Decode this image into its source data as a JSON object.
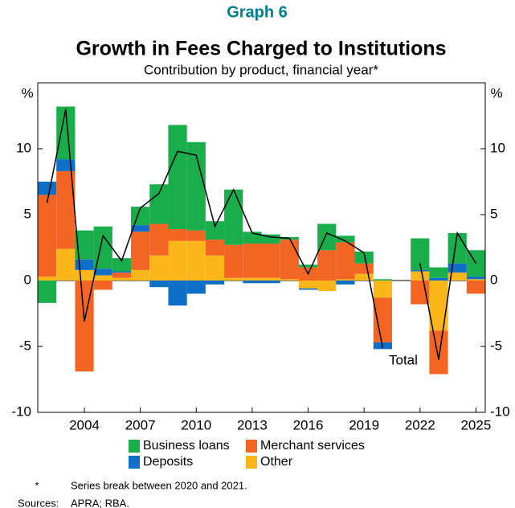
{
  "chart_data": {
    "type": "stacked_bar_line",
    "kicker": "Graph 6",
    "title": "Growth in Fees Charged to Institutions",
    "subtitle": "Contribution by product, financial year*",
    "y_unit": "%",
    "categories": [
      null,
      null,
      "2004",
      null,
      null,
      "2007",
      null,
      null,
      "2010",
      null,
      null,
      "2013",
      null,
      null,
      "2016",
      null,
      null,
      "2019",
      null,
      null,
      "2022",
      null,
      null,
      "2025"
    ],
    "series": [
      {
        "name": "Other",
        "color": "#fbb61a",
        "values": [
          0.3,
          2.4,
          0.8,
          0.4,
          0.2,
          0.8,
          1.9,
          3.0,
          3.0,
          1.9,
          0.2,
          0.2,
          0.2,
          0.1,
          -0.6,
          -0.8,
          0.1,
          0.5,
          -1.3,
          null,
          0.7,
          -3.8,
          0.6,
          0.1
        ]
      },
      {
        "name": "Merchant services",
        "color": "#f26522",
        "values": [
          6.2,
          5.9,
          -6.9,
          -0.7,
          0.4,
          2.9,
          2.4,
          0.9,
          0.8,
          1.2,
          2.5,
          2.6,
          2.6,
          3.0,
          1.0,
          2.3,
          2.8,
          0.8,
          -3.4,
          null,
          -1.8,
          -3.3,
          0.0,
          -1.0
        ]
      },
      {
        "name": "Deposits",
        "color": "#0f6fc6",
        "values": [
          1.0,
          0.9,
          0.8,
          0.5,
          0.1,
          0.5,
          -0.5,
          -1.9,
          -1.0,
          -0.3,
          0.0,
          -0.2,
          -0.2,
          0.0,
          -0.1,
          0.0,
          -0.3,
          0.0,
          -0.5,
          null,
          0.1,
          0.2,
          0.7,
          0.2
        ]
      },
      {
        "name": "Business loans",
        "color": "#1aad4b",
        "values": [
          -1.7,
          4.0,
          2.2,
          3.2,
          1.0,
          1.4,
          3.0,
          7.9,
          6.7,
          1.4,
          4.2,
          0.9,
          0.7,
          0.2,
          0.2,
          2.0,
          0.5,
          0.9,
          0.1,
          null,
          2.4,
          0.8,
          2.3,
          2.0
        ]
      }
    ],
    "line": {
      "name": "Total",
      "color": "#000000",
      "values": [
        5.9,
        13.0,
        -3.1,
        3.4,
        1.5,
        5.5,
        6.6,
        9.8,
        9.5,
        4.1,
        6.9,
        3.6,
        3.3,
        3.2,
        0.5,
        3.6,
        3.0,
        2.1,
        -5.1,
        null,
        1.3,
        -6.0,
        3.6,
        1.3
      ]
    },
    "legend_order": [
      3,
      1,
      2,
      0
    ],
    "ylim": [
      -10,
      15
    ],
    "yticks": [
      -10,
      -5,
      0,
      5,
      10
    ],
    "footnote": {
      "marker": "*",
      "text": "Series break between 2020 and 2021."
    },
    "sources": {
      "label": "Sources:",
      "text": "APRA; RBA."
    }
  }
}
